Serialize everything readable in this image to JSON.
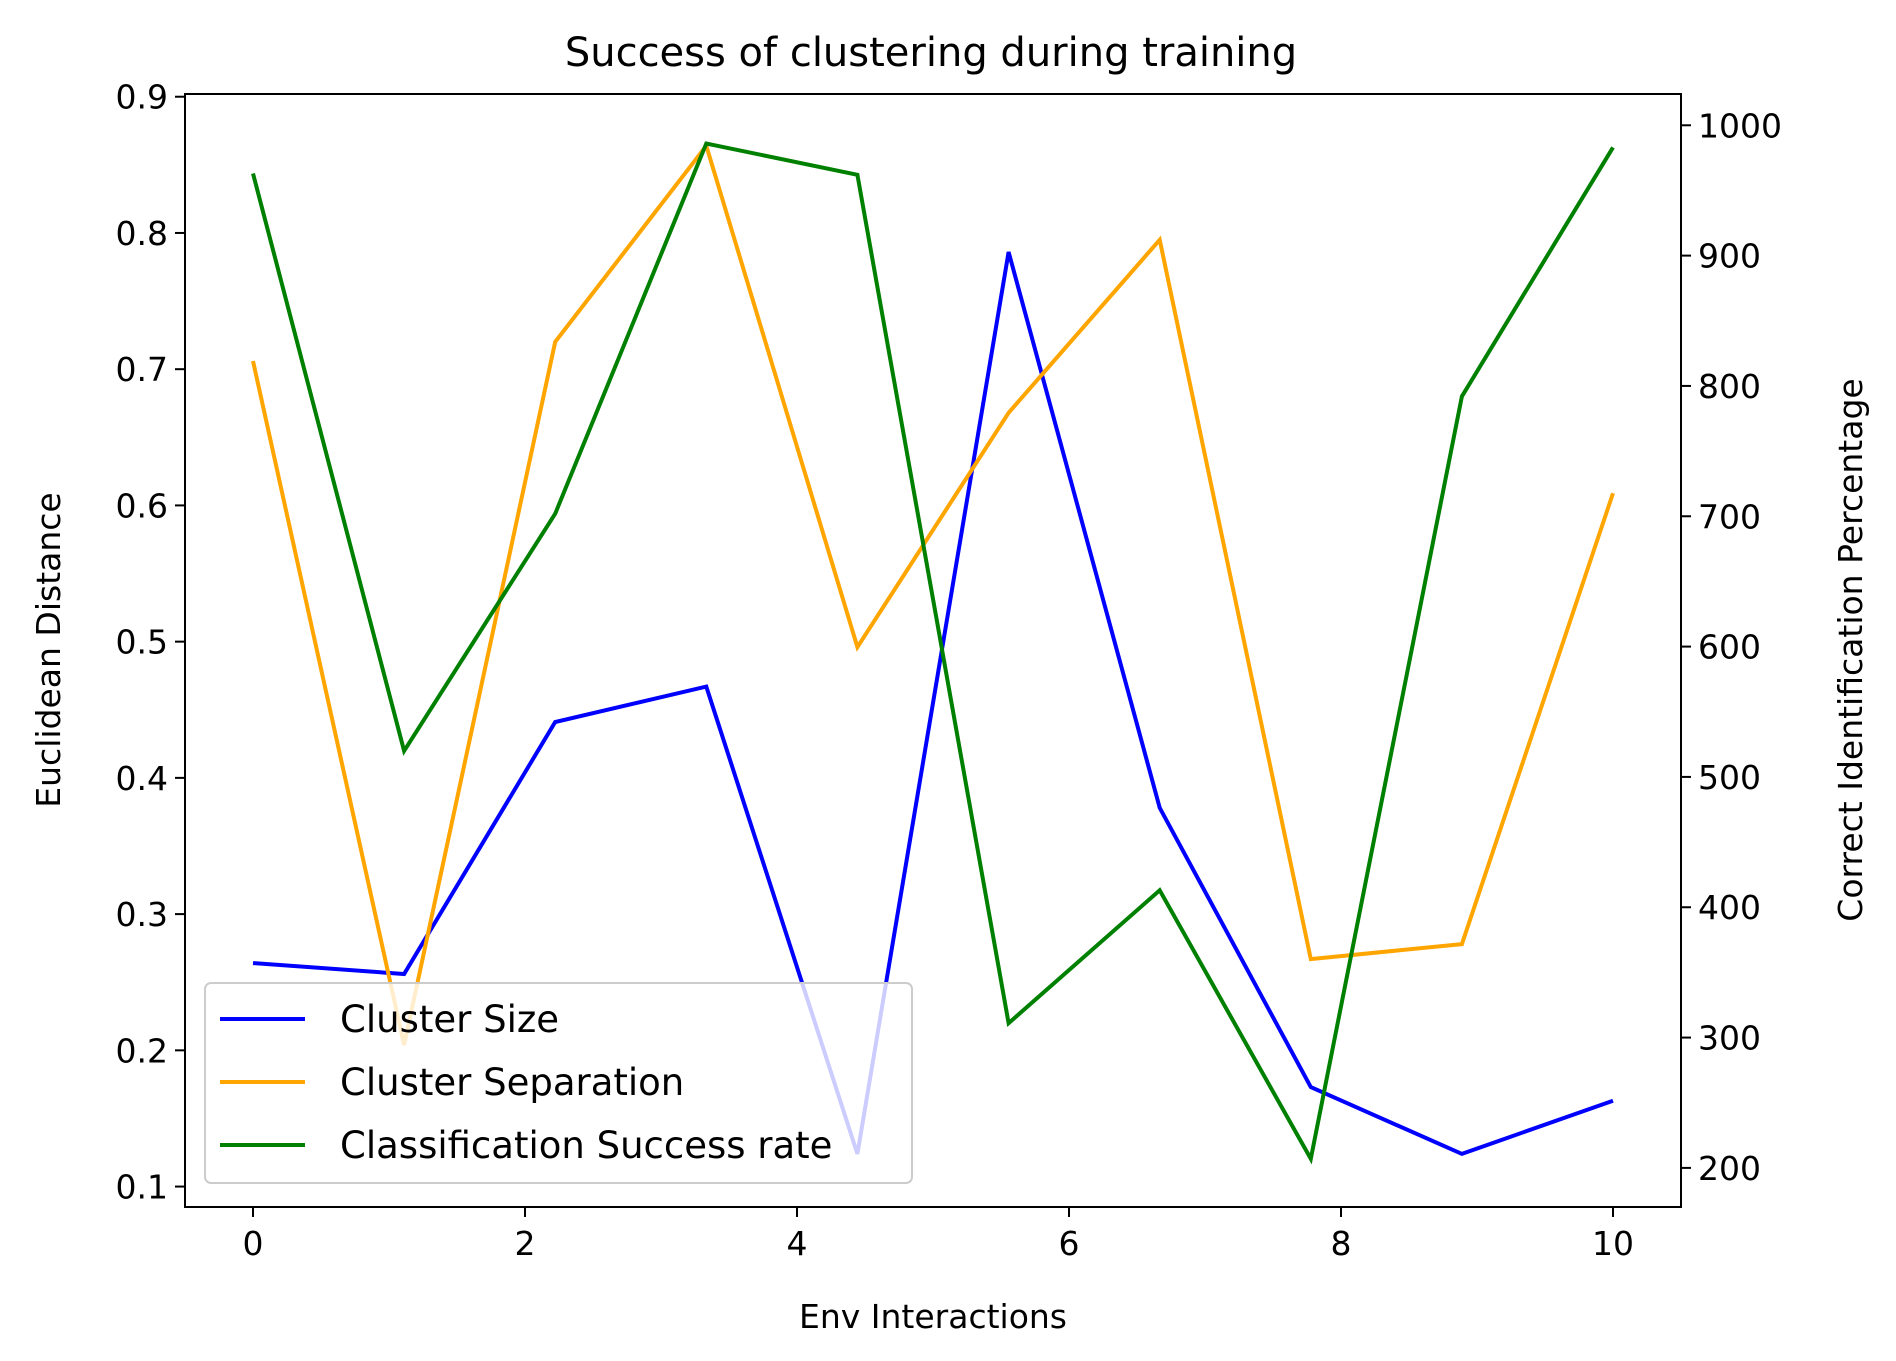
{
  "chart_data": {
    "type": "line",
    "title": "Success of clustering during training",
    "xlabel": "Env Interactions",
    "ylabel": "Euclidean Distance",
    "y2label": "Correct Identification Percentage",
    "x": [
      0,
      1.111,
      2.222,
      3.333,
      4.444,
      5.556,
      6.667,
      7.778,
      8.889,
      10
    ],
    "xlim": [
      -0.5,
      10.5
    ],
    "ylim": [
      0.085,
      0.902
    ],
    "y2lim": [
      170,
      1024
    ],
    "xticks": [
      0,
      2,
      4,
      6,
      8,
      10
    ],
    "yticks": [
      0.1,
      0.2,
      0.3,
      0.4,
      0.5,
      0.6,
      0.7,
      0.8,
      0.9
    ],
    "y2ticks": [
      200,
      300,
      400,
      500,
      600,
      700,
      800,
      900,
      1000
    ],
    "grid": false,
    "legend_position": "lower-left",
    "series": [
      {
        "name": "Cluster Size",
        "axis": "left",
        "color": "#0000ff",
        "values": [
          0.264,
          0.256,
          0.441,
          0.467,
          0.124,
          0.786,
          0.378,
          0.173,
          0.124,
          0.163
        ]
      },
      {
        "name": "Cluster Separation",
        "axis": "left",
        "color": "#ffa500",
        "values": [
          0.706,
          0.204,
          0.72,
          0.864,
          0.496,
          0.668,
          0.795,
          0.267,
          0.278,
          0.609
        ]
      },
      {
        "name": "Classification Success rate",
        "axis": "right",
        "color": "#008000",
        "values": [
          963,
          520,
          702,
          986,
          962,
          311,
          413,
          207,
          792,
          983
        ]
      }
    ]
  }
}
